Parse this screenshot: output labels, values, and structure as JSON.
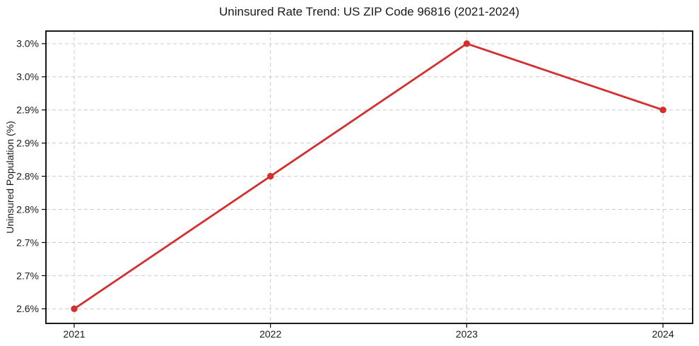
{
  "figure": {
    "background": "#ffffff"
  },
  "chart_data": {
    "type": "line",
    "title": "Uninsured Rate Trend: US ZIP Code 96816 (2021-2024)",
    "xlabel": "",
    "ylabel": "Uninsured Population (%)",
    "x": [
      2021,
      2022,
      2023,
      2024
    ],
    "x_tick_labels": [
      "2021",
      "2022",
      "2023",
      "2024"
    ],
    "values": [
      2.6,
      2.8,
      3.0,
      2.9
    ],
    "y_ticks": [
      {
        "value": 2.6,
        "label": "2.6%"
      },
      {
        "value": 2.65,
        "label": "2.7%"
      },
      {
        "value": 2.7,
        "label": "2.7%"
      },
      {
        "value": 2.75,
        "label": "2.8%"
      },
      {
        "value": 2.8,
        "label": "2.8%"
      },
      {
        "value": 2.85,
        "label": "2.9%"
      },
      {
        "value": 2.9,
        "label": "2.9%"
      },
      {
        "value": 2.95,
        "label": "3.0%"
      },
      {
        "value": 3.0,
        "label": "3.0%"
      }
    ],
    "xlim": [
      2020.856,
      2024.151
    ],
    "ylim": [
      2.578,
      3.019
    ],
    "grid": "dashed-both-axes",
    "legend": "none",
    "marker": "circle",
    "colors": {
      "line": "#d32f2f",
      "marker": "#d32f2f",
      "grid": "#c9c9c9",
      "axis_border": "#000000",
      "text": "#1a1a1a"
    }
  }
}
